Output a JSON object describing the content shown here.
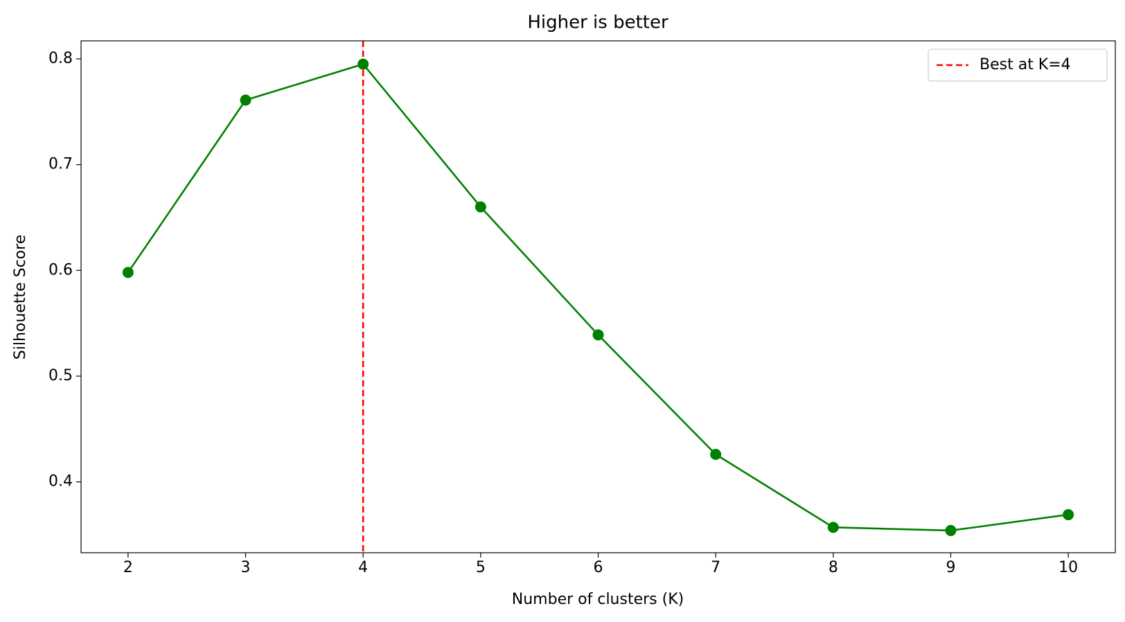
{
  "chart_data": {
    "type": "line",
    "title": "Higher is better",
    "x_label": "Number of clusters (K)",
    "y_label": "Silhouette Score",
    "x": [
      2,
      3,
      4,
      5,
      6,
      7,
      8,
      9,
      10
    ],
    "series": [
      {
        "color": "#008000",
        "values": [
          0.598,
          0.761,
          0.795,
          0.66,
          0.539,
          0.426,
          0.357,
          0.354,
          0.369
        ]
      }
    ],
    "vline": {
      "x": 4,
      "label": "Best at K=4",
      "color": "#ff0000"
    },
    "xlim": [
      1.6,
      10.4
    ],
    "xticks": [
      2,
      3,
      4,
      5,
      6,
      7,
      8,
      9,
      10
    ],
    "ylim": [
      0.333,
      0.817
    ],
    "yticks": [
      0.4,
      0.5,
      0.6,
      0.7,
      0.8
    ],
    "grid": false,
    "legend": "upper right"
  }
}
